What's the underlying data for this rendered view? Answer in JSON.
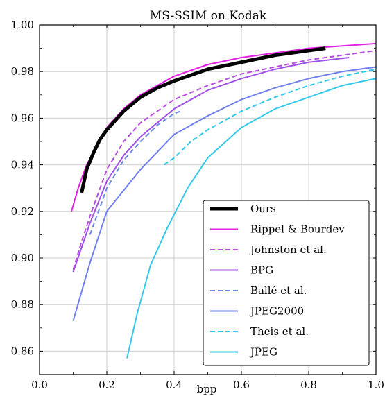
{
  "chart_data": {
    "type": "line",
    "title": "MS-SSIM on Kodak",
    "xlabel": "bpp",
    "ylabel": "",
    "xlim": [
      0.0,
      1.0
    ],
    "ylim": [
      0.85,
      1.0
    ],
    "xticks": [
      "0.0",
      "0.2",
      "0.4",
      "0.6",
      "0.8",
      "1.0"
    ],
    "yticks": [
      "0.86",
      "0.88",
      "0.90",
      "0.92",
      "0.94",
      "0.96",
      "0.98",
      "1.00"
    ],
    "grid": true,
    "legend_position": "bottom-right",
    "series": [
      {
        "name": "Ours",
        "color": "#000000",
        "style": "solid",
        "width": 5,
        "x": [
          0.125,
          0.14,
          0.16,
          0.18,
          0.2,
          0.25,
          0.3,
          0.35,
          0.4,
          0.5,
          0.6,
          0.7,
          0.85
        ],
        "y": [
          0.928,
          0.938,
          0.945,
          0.951,
          0.955,
          0.963,
          0.969,
          0.973,
          0.976,
          0.981,
          0.984,
          0.987,
          0.99
        ]
      },
      {
        "name": "Rippel & Bourdev",
        "color": "#e41ee4",
        "style": "solid",
        "width": 2,
        "x": [
          0.095,
          0.115,
          0.14,
          0.17,
          0.2,
          0.25,
          0.3,
          0.4,
          0.5,
          0.6,
          0.7,
          0.8,
          0.9,
          1.0
        ],
        "y": [
          0.92,
          0.93,
          0.94,
          0.948,
          0.956,
          0.964,
          0.97,
          0.978,
          0.983,
          0.986,
          0.988,
          0.99,
          0.991,
          0.992
        ]
      },
      {
        "name": "Johnston et al.",
        "color": "#b84de0",
        "style": "dashed",
        "width": 2,
        "x": [
          0.1,
          0.125,
          0.15,
          0.2,
          0.25,
          0.3,
          0.4,
          0.5,
          0.6,
          0.7,
          0.8,
          0.9,
          1.0
        ],
        "y": [
          0.895,
          0.907,
          0.918,
          0.938,
          0.95,
          0.958,
          0.968,
          0.974,
          0.979,
          0.982,
          0.985,
          0.987,
          0.989
        ]
      },
      {
        "name": "BPG",
        "color": "#a050e8",
        "style": "solid",
        "width": 2,
        "x": [
          0.1,
          0.15,
          0.2,
          0.25,
          0.3,
          0.4,
          0.5,
          0.6,
          0.7,
          0.8,
          0.92
        ],
        "y": [
          0.894,
          0.915,
          0.933,
          0.944,
          0.952,
          0.964,
          0.972,
          0.977,
          0.981,
          0.984,
          0.986
        ]
      },
      {
        "name": "Ballé et al.",
        "color": "#6a8ae8",
        "style": "dashed",
        "width": 2,
        "x": [
          0.15,
          0.2,
          0.25,
          0.3,
          0.35,
          0.4,
          0.42
        ],
        "y": [
          0.91,
          0.93,
          0.942,
          0.95,
          0.957,
          0.962,
          0.963
        ]
      },
      {
        "name": "JPEG2000",
        "color": "#6f7ff0",
        "style": "solid",
        "width": 2,
        "x": [
          0.1,
          0.15,
          0.2,
          0.3,
          0.4,
          0.5,
          0.6,
          0.7,
          0.8,
          0.9,
          1.0
        ],
        "y": [
          0.873,
          0.898,
          0.92,
          0.938,
          0.953,
          0.961,
          0.968,
          0.973,
          0.977,
          0.98,
          0.982
        ]
      },
      {
        "name": "Theis et al.",
        "color": "#2ec8f0",
        "style": "dashed",
        "width": 2,
        "x": [
          0.37,
          0.4,
          0.45,
          0.5,
          0.6,
          0.7,
          0.8,
          0.9,
          1.0
        ],
        "y": [
          0.94,
          0.943,
          0.95,
          0.955,
          0.963,
          0.969,
          0.974,
          0.978,
          0.981
        ]
      },
      {
        "name": "JPEG",
        "color": "#34c9ea",
        "style": "solid",
        "width": 2,
        "x": [
          0.26,
          0.29,
          0.33,
          0.38,
          0.44,
          0.5,
          0.6,
          0.7,
          0.8,
          0.9,
          1.0
        ],
        "y": [
          0.857,
          0.876,
          0.897,
          0.913,
          0.93,
          0.943,
          0.956,
          0.964,
          0.969,
          0.974,
          0.977
        ]
      }
    ]
  }
}
